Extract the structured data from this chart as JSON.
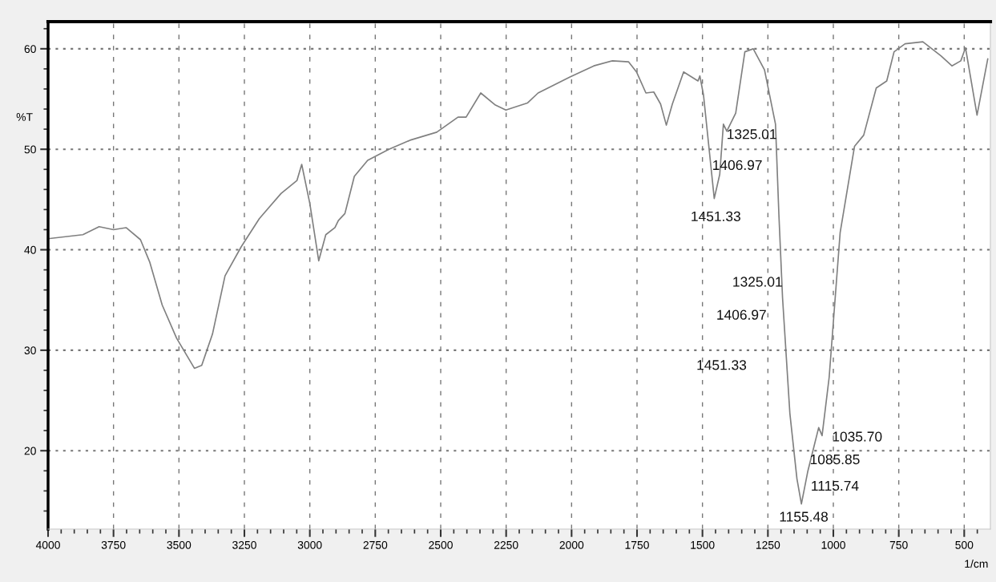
{
  "chart_data": {
    "type": "line",
    "xlabel": "1/cm",
    "ylabel": "%T",
    "x": [
      4000,
      3867,
      3805,
      3750,
      3702,
      3647,
      3612,
      3564,
      3509,
      3441,
      3413,
      3372,
      3324,
      3262,
      3193,
      3110,
      3049,
      3031,
      3000,
      2966,
      2939,
      2904,
      2891,
      2866,
      2830,
      2779,
      2698,
      2617,
      2515,
      2434,
      2403,
      2347,
      2291,
      2251,
      2169,
      2128,
      2006,
      1915,
      1844,
      1782,
      1752,
      1716,
      1686,
      1660,
      1638,
      1615,
      1572,
      1517,
      1510,
      1496,
      1455,
      1434,
      1420,
      1407,
      1373,
      1338,
      1306,
      1263,
      1221,
      1208,
      1194,
      1166,
      1139,
      1122,
      1098,
      1077,
      1056,
      1043,
      1016,
      974,
      919,
      884,
      836,
      796,
      768,
      726,
      658,
      589,
      547,
      513,
      495,
      451,
      410
    ],
    "series": [
      {
        "color": "#808080",
        "values": [
          41.1,
          41.5,
          42.3,
          42.0,
          42.2,
          41.0,
          38.8,
          34.5,
          31.2,
          28.2,
          28.5,
          31.6,
          37.4,
          40.3,
          43.1,
          45.6,
          46.9,
          48.5,
          44.6,
          38.9,
          41.5,
          42.2,
          42.9,
          43.6,
          47.3,
          48.9,
          50.0,
          50.9,
          51.7,
          53.2,
          53.2,
          55.6,
          54.4,
          53.9,
          54.6,
          55.6,
          57.2,
          58.3,
          58.8,
          58.7,
          57.7,
          55.6,
          55.7,
          54.5,
          52.4,
          54.5,
          57.7,
          56.8,
          57.3,
          55.4,
          45.1,
          47.5,
          52.5,
          51.8,
          53.6,
          59.7,
          60.0,
          57.9,
          52.5,
          43.5,
          35.2,
          23.7,
          17.2,
          14.7,
          17.9,
          20.1,
          22.3,
          21.5,
          27.3,
          41.7,
          50.3,
          51.4,
          56.1,
          56.8,
          59.7,
          60.5,
          60.7,
          59.3,
          58.3,
          58.8,
          60.1,
          53.4,
          59.0
        ]
      }
    ],
    "xlim": [
      4000,
      400
    ],
    "ylim": [
      12.2,
      62.7
    ],
    "xticks": [
      4000,
      {
        "value": 3950,
        "label": null
      },
      {
        "value": 3900,
        "label": null
      },
      {
        "value": 3850,
        "label": null
      },
      {
        "value": 3800,
        "label": null
      },
      3750,
      {
        "value": 3700,
        "label": null
      },
      {
        "value": 3650,
        "label": null
      },
      {
        "value": 3600,
        "label": null
      },
      {
        "value": 3550,
        "label": null
      },
      3500,
      {
        "value": 3450,
        "label": null
      },
      {
        "value": 3400,
        "label": null
      },
      {
        "value": 3350,
        "label": null
      },
      {
        "value": 3300,
        "label": null
      },
      3250,
      {
        "value": 3200,
        "label": null
      },
      {
        "value": 3150,
        "label": null
      },
      {
        "value": 3100,
        "label": null
      },
      {
        "value": 3050,
        "label": null
      },
      3000,
      {
        "value": 2950,
        "label": null
      },
      {
        "value": 2900,
        "label": null
      },
      {
        "value": 2850,
        "label": null
      },
      {
        "value": 2800,
        "label": null
      },
      2750,
      {
        "value": 2700,
        "label": null
      },
      {
        "value": 2650,
        "label": null
      },
      {
        "value": 2600,
        "label": null
      },
      {
        "value": 2550,
        "label": null
      },
      2500,
      {
        "value": 2450,
        "label": null
      },
      {
        "value": 2400,
        "label": null
      },
      {
        "value": 2350,
        "label": null
      },
      {
        "value": 2300,
        "label": null
      },
      2250,
      {
        "value": 2200,
        "label": null
      },
      {
        "value": 2150,
        "label": null
      },
      {
        "value": 2100,
        "label": null
      },
      {
        "value": 2050,
        "label": null
      },
      2000,
      {
        "value": 1950,
        "label": null
      },
      {
        "value": 1900,
        "label": null
      },
      {
        "value": 1850,
        "label": null
      },
      {
        "value": 1800,
        "label": null
      },
      1750,
      {
        "value": 1700,
        "label": null
      },
      {
        "value": 1650,
        "label": null
      },
      {
        "value": 1600,
        "label": null
      },
      {
        "value": 1550,
        "label": null
      },
      1500,
      {
        "value": 1450,
        "label": null
      },
      {
        "value": 1400,
        "label": null
      },
      {
        "value": 1350,
        "label": null
      },
      {
        "value": 1300,
        "label": null
      },
      1250,
      {
        "value": 1200,
        "label": null
      },
      {
        "value": 1150,
        "label": null
      },
      {
        "value": 1100,
        "label": null
      },
      {
        "value": 1050,
        "label": null
      },
      1000,
      {
        "value": 950,
        "label": null
      },
      {
        "value": 900,
        "label": null
      },
      {
        "value": 850,
        "label": null
      },
      {
        "value": 800,
        "label": null
      },
      750,
      {
        "value": 700,
        "label": null
      },
      {
        "value": 650,
        "label": null
      },
      {
        "value": 600,
        "label": null
      },
      {
        "value": 550,
        "label": null
      },
      500,
      {
        "value": 450,
        "label": null
      }
    ],
    "yticks": [
      {
        "value": 14,
        "label": null
      },
      {
        "value": 16,
        "label": null
      },
      {
        "value": 18,
        "label": null
      },
      20,
      {
        "value": 22,
        "label": null
      },
      {
        "value": 24,
        "label": null
      },
      {
        "value": 26,
        "label": null
      },
      {
        "value": 28,
        "label": null
      },
      30,
      {
        "value": 32,
        "label": null
      },
      {
        "value": 34,
        "label": null
      },
      {
        "value": 36,
        "label": null
      },
      {
        "value": 38,
        "label": null
      },
      40,
      {
        "value": 42,
        "label": null
      },
      {
        "value": 44,
        "label": null
      },
      {
        "value": 46,
        "label": null
      },
      {
        "value": 48,
        "label": null
      },
      50,
      {
        "value": 52,
        "label": null
      },
      {
        "value": 54,
        "label": null
      },
      {
        "value": 56,
        "label": null
      },
      {
        "value": 58,
        "label": null
      },
      60,
      {
        "value": 62,
        "label": null
      }
    ],
    "grid": true,
    "annotations": [
      "1325.01",
      "1406.97",
      "1451.33",
      "1325.01",
      "1406.97",
      "1451.33",
      "1035.70",
      "1085.85",
      "1115.74",
      "1155.48"
    ]
  }
}
